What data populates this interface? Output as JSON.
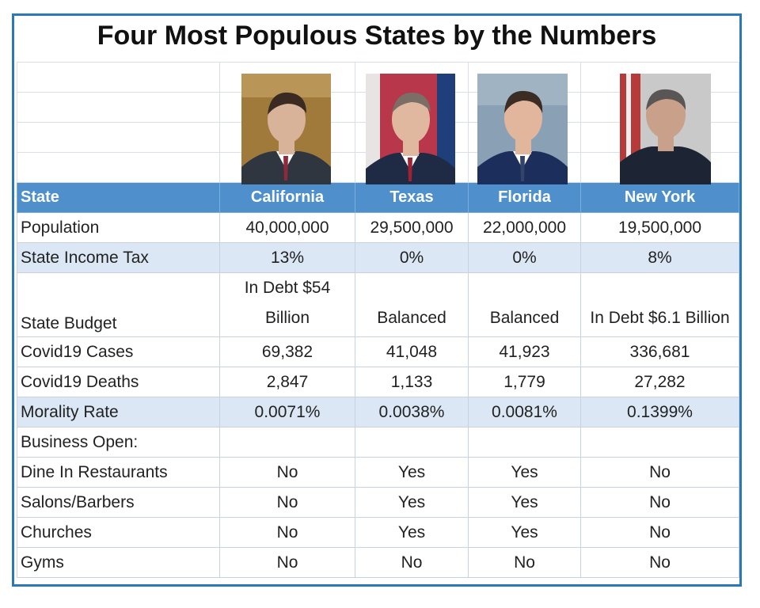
{
  "title": "Four Most Populous States by the Numbers",
  "header": {
    "label": "State",
    "states": [
      "California",
      "Texas",
      "Florida",
      "New York"
    ]
  },
  "portraits": [
    {
      "state": "California",
      "bg": "#a07a3a",
      "suit": "#2f3640",
      "skin": "#d9b29a",
      "hair": "#3a2a22",
      "tie": "#8e2b3a"
    },
    {
      "state": "Texas",
      "bg": "#b8374a",
      "suit": "#1f2a44",
      "skin": "#e0b8a0",
      "hair": "#7b6e66",
      "tie": "#9e2136"
    },
    {
      "state": "Florida",
      "bg": "#8aa0b4",
      "suit": "#1c2e5c",
      "skin": "#e2b69c",
      "hair": "#3b2c24",
      "tie": "#33446b"
    },
    {
      "state": "New York",
      "bg": "#c9c9c9",
      "suit": "#1d2433",
      "skin": "#c9a08a",
      "hair": "#5a5656",
      "tie": "#1d2433"
    }
  ],
  "rows": [
    {
      "label": "Population",
      "values": [
        "40,000,000",
        "29,500,000",
        "22,000,000",
        "19,500,000"
      ]
    },
    {
      "label": "State Income Tax",
      "values": [
        "13%",
        "0%",
        "0%",
        "8%"
      ],
      "band": true
    },
    {
      "label": "State Budget",
      "values": [
        "In Debt $54 Billion",
        "Balanced",
        "Balanced",
        "In Debt $6.1 Billion"
      ],
      "tall": true
    },
    {
      "label": "Covid19 Cases",
      "values": [
        "69,382",
        "41,048",
        "41,923",
        "336,681"
      ]
    },
    {
      "label": "Covid19 Deaths",
      "values": [
        "2,847",
        "1,133",
        "1,779",
        "27,282"
      ]
    },
    {
      "label": "Morality Rate",
      "values": [
        "0.0071%",
        "0.0038%",
        "0.0081%",
        "0.1399%"
      ],
      "band": true
    },
    {
      "label": "Business Open:",
      "values": [
        "",
        "",
        "",
        ""
      ]
    },
    {
      "label": "Dine In Restaurants",
      "values": [
        "No",
        "Yes",
        "Yes",
        "No"
      ]
    },
    {
      "label": "Salons/Barbers",
      "values": [
        "No",
        "Yes",
        "Yes",
        "No"
      ]
    },
    {
      "label": "Churches",
      "values": [
        "No",
        "Yes",
        "Yes",
        "No"
      ]
    },
    {
      "label": "Gyms",
      "values": [
        "No",
        "No",
        "No",
        "No"
      ]
    }
  ]
}
